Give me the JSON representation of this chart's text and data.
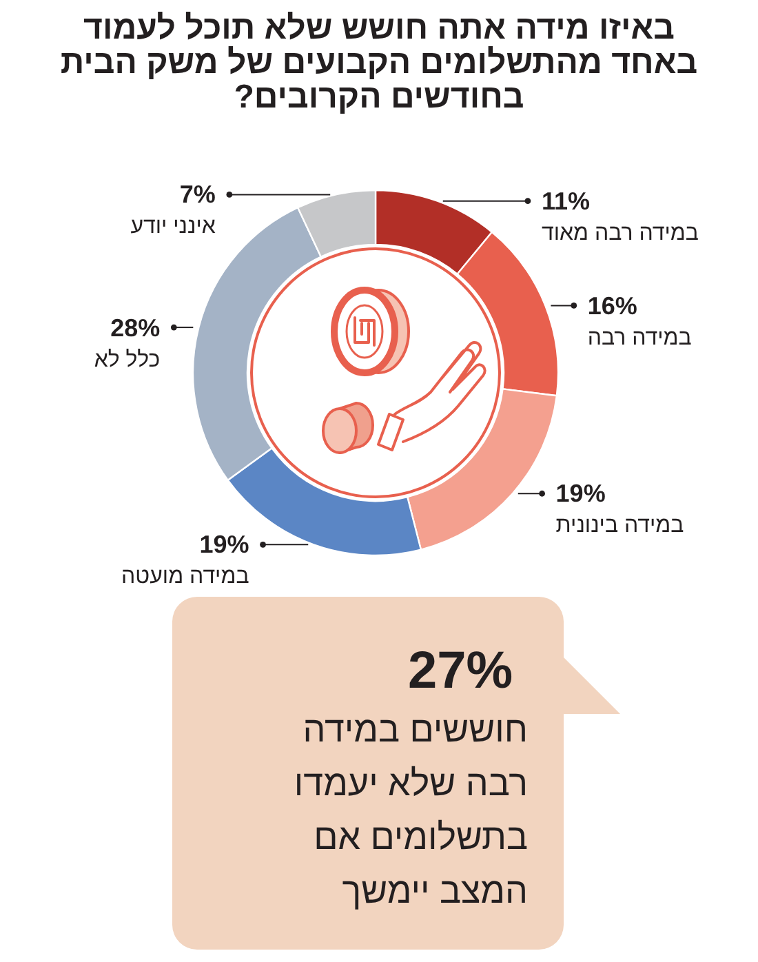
{
  "chart_data": {
    "type": "donut",
    "title": "באיזו מידה אתה חושש שלא תוכל לעמוד באחד מהתשלומים הקבועים של משק הבית בחודשים הקרובים?",
    "categories": [
      "במידה רבה מאוד",
      "במידה רבה",
      "במידה בינונית",
      "במידה מועטה",
      "כלל לא",
      "אינני יודע"
    ],
    "values": [
      11,
      16,
      19,
      19,
      28,
      7
    ],
    "colors": [
      "#b22f27",
      "#e8604e",
      "#f4a08f",
      "#5b86c5",
      "#a4b3c6",
      "#c6c7c9"
    ],
    "value_labels": [
      "11%",
      "16%",
      "19%",
      "19%",
      "28%",
      "7%"
    ],
    "annotations": [
      "27%",
      "חוששים במידה רבה שלא יעמדו בתשלומים אם המצב יימשך"
    ]
  }
}
